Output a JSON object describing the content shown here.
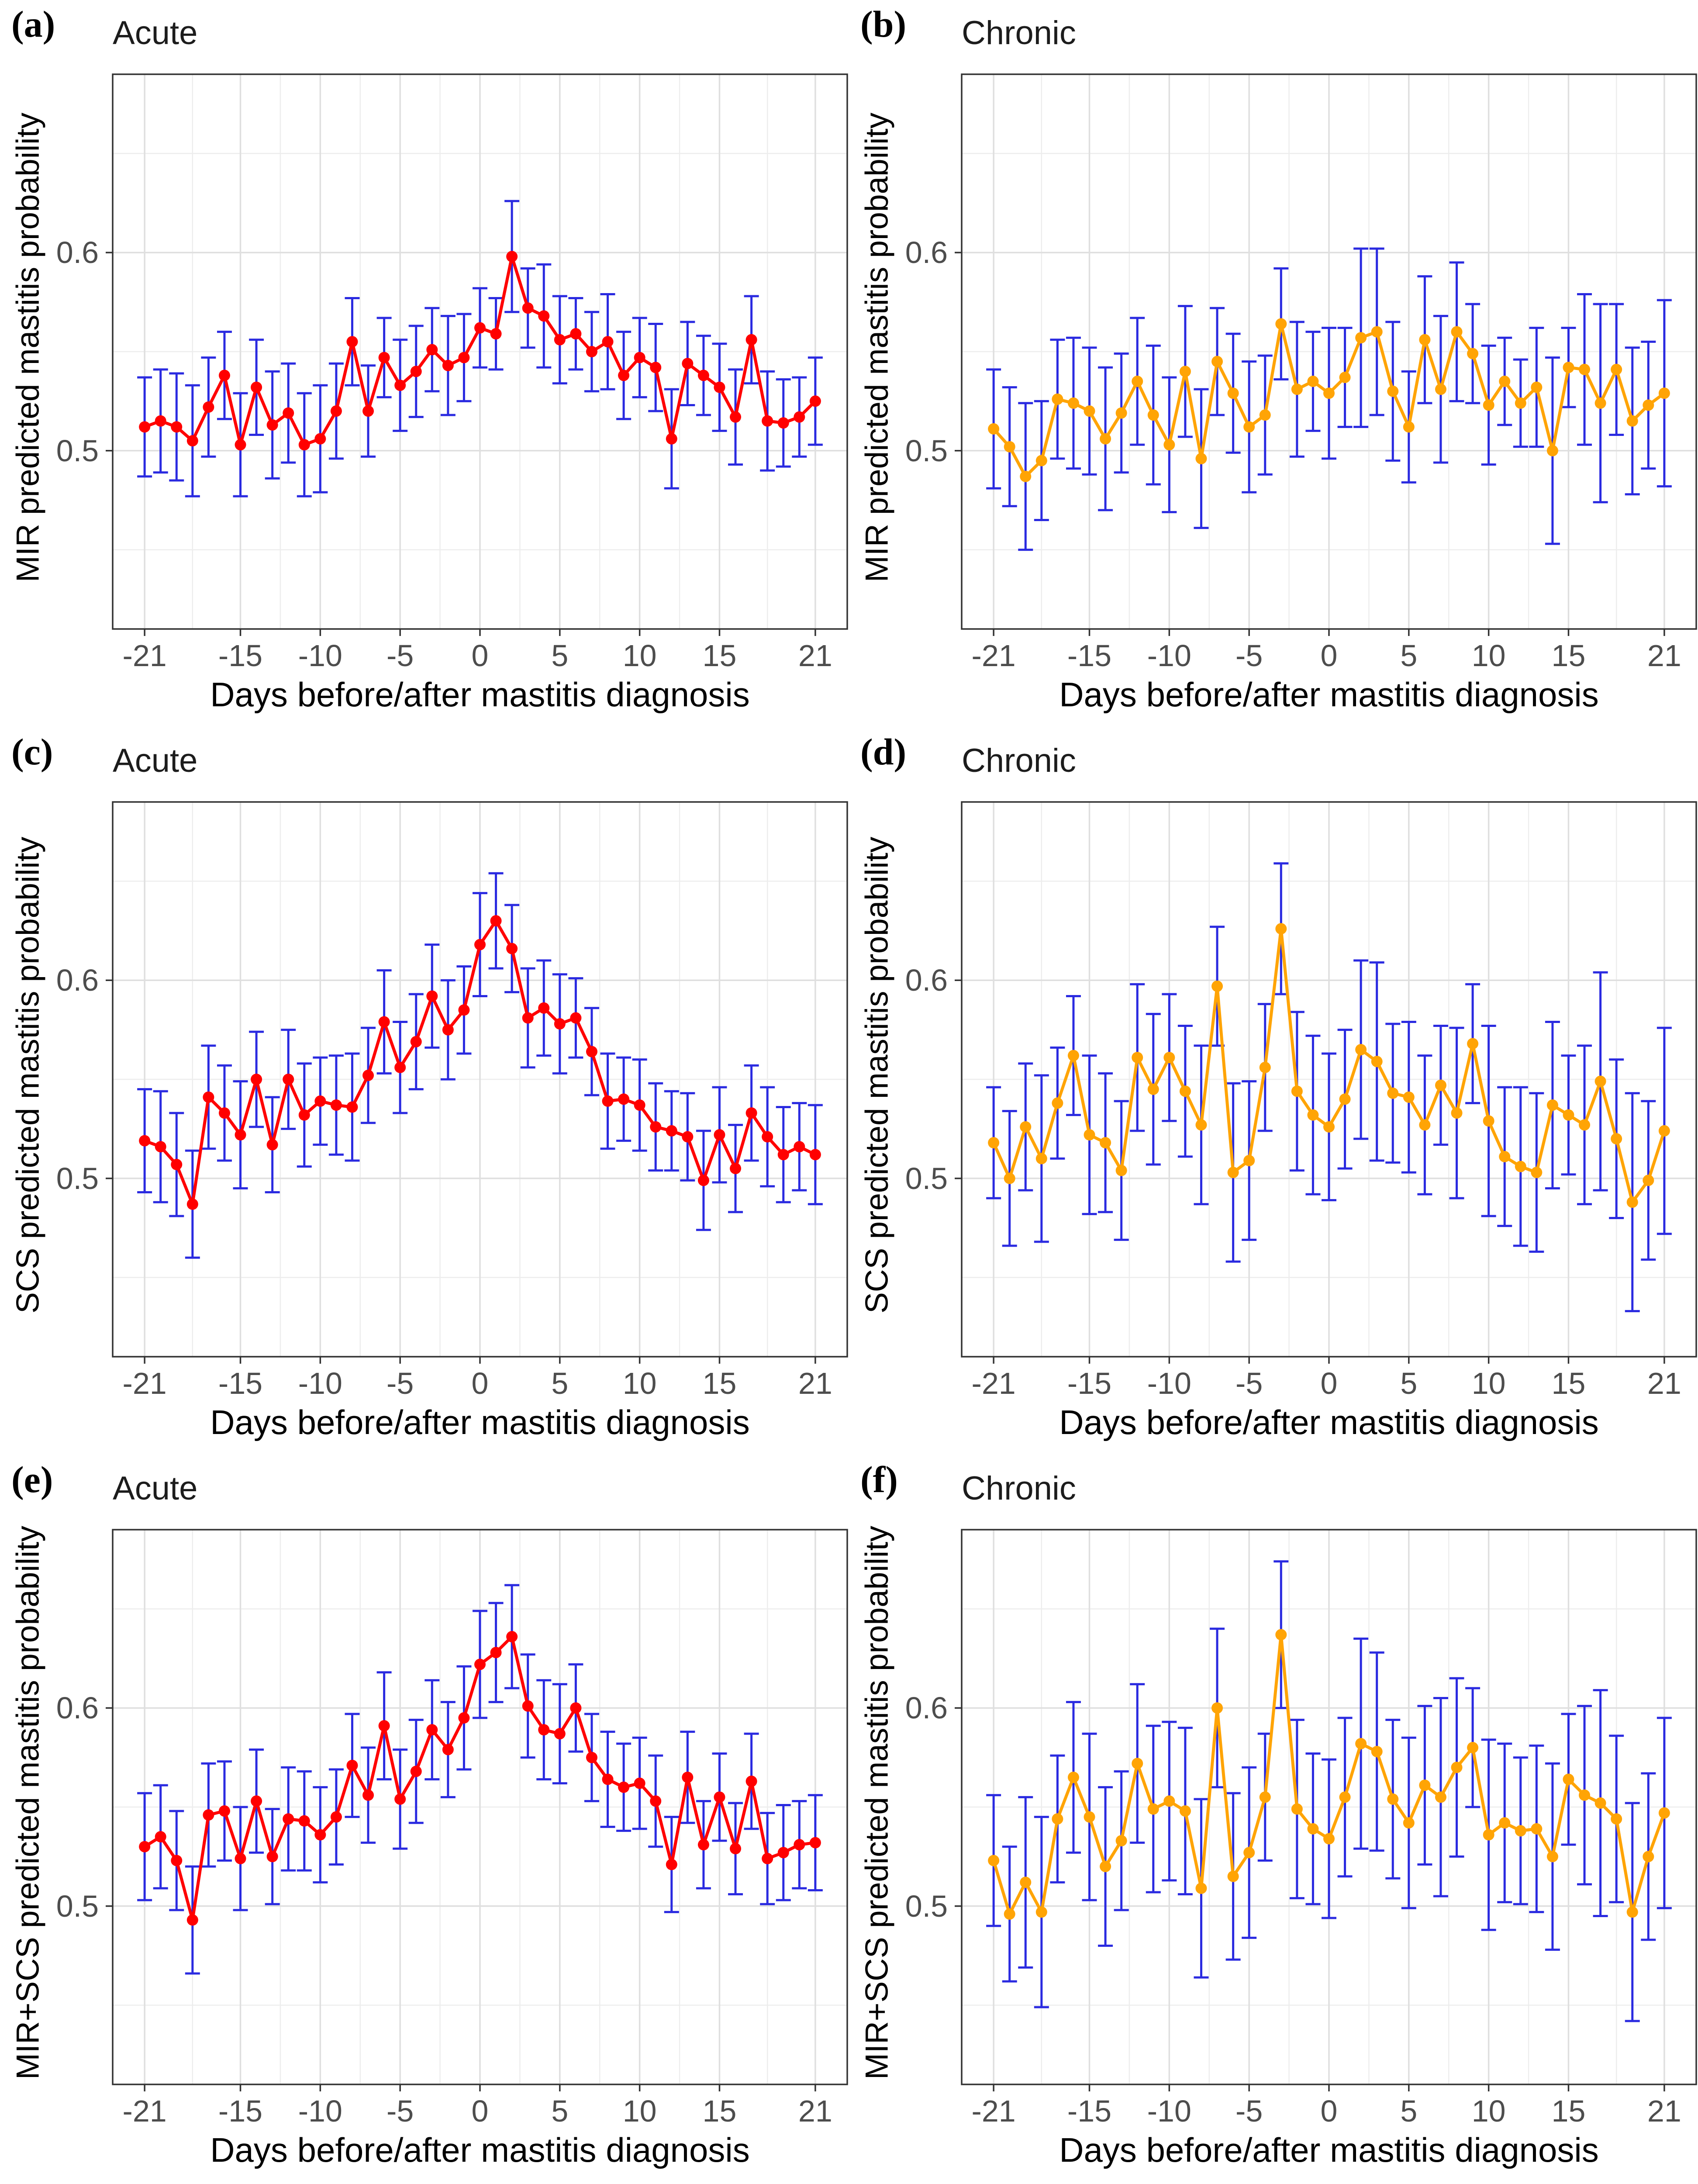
{
  "axes": {
    "xlim": [
      -23,
      23
    ],
    "ylim": [
      0.41,
      0.69
    ],
    "x_ticks": [
      -21,
      -15,
      -10,
      -5,
      0,
      5,
      10,
      15,
      21
    ],
    "x_tick_labels": [
      "-21",
      "-15",
      "-10",
      "-5",
      "0",
      "5",
      "10",
      "15",
      "21"
    ],
    "x_minor_ticks": [
      -18,
      -12.5,
      -7.5,
      -2.5,
      2.5,
      7.5,
      12.5,
      18
    ],
    "y_ticks": [
      0.5,
      0.6
    ],
    "y_tick_labels": [
      "0.5",
      "0.6"
    ],
    "y_minor_ticks": [
      0.45,
      0.55,
      0.65
    ],
    "colors": {
      "acute_line": "#FF0000",
      "chronic_line": "#FFA405",
      "error_bar": "#2A2AE0",
      "grid_major": "#DFDFDF",
      "grid_minor": "#EDEDED",
      "panel_border": "#333333",
      "tick_mark": "#333333",
      "tick_label": "#4D4D4D",
      "axis_title": "#000000",
      "panel_title": "#1C1C1C",
      "plot_background": "#FFFFFF"
    }
  },
  "chart_data": [
    {
      "type": "line",
      "panel_letter": "(a)",
      "title": "Acute",
      "ylabel": "MIR predicted mastitis probability",
      "xlabel": "Days before/after mastitis diagnosis",
      "color_key": "acute_line",
      "x": [
        -21,
        -20,
        -19,
        -18,
        -17,
        -16,
        -15,
        -14,
        -13,
        -12,
        -11,
        -10,
        -9,
        -8,
        -7,
        -6,
        -5,
        -4,
        -3,
        -2,
        -1,
        0,
        1,
        2,
        3,
        4,
        5,
        6,
        7,
        8,
        9,
        10,
        11,
        12,
        13,
        14,
        15,
        16,
        17,
        18,
        19,
        20,
        21
      ],
      "y": [
        0.512,
        0.515,
        0.512,
        0.505,
        0.522,
        0.538,
        0.503,
        0.532,
        0.513,
        0.519,
        0.503,
        0.506,
        0.52,
        0.555,
        0.52,
        0.547,
        0.533,
        0.54,
        0.551,
        0.543,
        0.547,
        0.562,
        0.559,
        0.598,
        0.572,
        0.568,
        0.556,
        0.559,
        0.55,
        0.555,
        0.538,
        0.547,
        0.542,
        0.506,
        0.544,
        0.538,
        0.532,
        0.517,
        0.556,
        0.515,
        0.514,
        0.517,
        0.525
      ],
      "err": [
        0.025,
        0.026,
        0.027,
        0.028,
        0.025,
        0.022,
        0.026,
        0.024,
        0.027,
        0.025,
        0.026,
        0.027,
        0.024,
        0.022,
        0.023,
        0.02,
        0.023,
        0.023,
        0.021,
        0.025,
        0.022,
        0.02,
        0.018,
        0.028,
        0.02,
        0.026,
        0.022,
        0.018,
        0.02,
        0.024,
        0.022,
        0.02,
        0.022,
        0.025,
        0.021,
        0.02,
        0.022,
        0.024,
        0.022,
        0.025,
        0.022,
        0.02,
        0.022
      ]
    },
    {
      "type": "line",
      "panel_letter": "(b)",
      "title": "Chronic",
      "ylabel": "MIR predicted mastitis probability",
      "xlabel": "Days before/after mastitis diagnosis",
      "color_key": "chronic_line",
      "x": [
        -21,
        -20,
        -19,
        -18,
        -17,
        -16,
        -15,
        -14,
        -13,
        -12,
        -11,
        -10,
        -9,
        -8,
        -7,
        -6,
        -5,
        -4,
        -3,
        -2,
        -1,
        0,
        1,
        2,
        3,
        4,
        5,
        6,
        7,
        8,
        9,
        10,
        11,
        12,
        13,
        14,
        15,
        16,
        17,
        18,
        19,
        20,
        21
      ],
      "y": [
        0.511,
        0.502,
        0.487,
        0.495,
        0.526,
        0.524,
        0.52,
        0.506,
        0.519,
        0.535,
        0.518,
        0.503,
        0.54,
        0.496,
        0.545,
        0.529,
        0.512,
        0.518,
        0.564,
        0.531,
        0.535,
        0.529,
        0.537,
        0.557,
        0.56,
        0.53,
        0.512,
        0.556,
        0.531,
        0.56,
        0.549,
        0.523,
        0.535,
        0.524,
        0.532,
        0.5,
        0.542,
        0.541,
        0.524,
        0.541,
        0.515,
        0.523,
        0.529
      ],
      "err": [
        0.03,
        0.03,
        0.037,
        0.03,
        0.03,
        0.033,
        0.032,
        0.036,
        0.03,
        0.032,
        0.035,
        0.034,
        0.033,
        0.035,
        0.027,
        0.03,
        0.033,
        0.03,
        0.028,
        0.034,
        0.025,
        0.033,
        0.025,
        0.045,
        0.042,
        0.035,
        0.028,
        0.032,
        0.037,
        0.035,
        0.025,
        0.03,
        0.022,
        0.022,
        0.03,
        0.047,
        0.02,
        0.038,
        0.05,
        0.033,
        0.037,
        0.032,
        0.047
      ]
    },
    {
      "type": "line",
      "panel_letter": "(c)",
      "title": "Acute",
      "ylabel": "SCS predicted mastitis probability",
      "xlabel": "Days before/after mastitis diagnosis",
      "color_key": "acute_line",
      "x": [
        -21,
        -20,
        -19,
        -18,
        -17,
        -16,
        -15,
        -14,
        -13,
        -12,
        -11,
        -10,
        -9,
        -8,
        -7,
        -6,
        -5,
        -4,
        -3,
        -2,
        -1,
        0,
        1,
        2,
        3,
        4,
        5,
        6,
        7,
        8,
        9,
        10,
        11,
        12,
        13,
        14,
        15,
        16,
        17,
        18,
        19,
        20,
        21
      ],
      "y": [
        0.519,
        0.516,
        0.507,
        0.487,
        0.541,
        0.533,
        0.522,
        0.55,
        0.517,
        0.55,
        0.532,
        0.539,
        0.537,
        0.536,
        0.552,
        0.579,
        0.556,
        0.569,
        0.592,
        0.575,
        0.585,
        0.618,
        0.63,
        0.616,
        0.581,
        0.586,
        0.578,
        0.581,
        0.564,
        0.539,
        0.54,
        0.537,
        0.526,
        0.524,
        0.521,
        0.499,
        0.522,
        0.505,
        0.533,
        0.521,
        0.512,
        0.516,
        0.512
      ],
      "err": [
        0.026,
        0.028,
        0.026,
        0.027,
        0.026,
        0.024,
        0.027,
        0.024,
        0.024,
        0.025,
        0.026,
        0.022,
        0.025,
        0.027,
        0.024,
        0.026,
        0.023,
        0.024,
        0.026,
        0.025,
        0.022,
        0.026,
        0.024,
        0.022,
        0.025,
        0.024,
        0.025,
        0.02,
        0.022,
        0.024,
        0.021,
        0.023,
        0.022,
        0.02,
        0.022,
        0.025,
        0.024,
        0.022,
        0.024,
        0.025,
        0.024,
        0.022,
        0.025
      ]
    },
    {
      "type": "line",
      "panel_letter": "(d)",
      "title": "Chronic",
      "ylabel": "SCS predicted mastitis probability",
      "xlabel": "Days before/after mastitis diagnosis",
      "color_key": "chronic_line",
      "x": [
        -21,
        -20,
        -19,
        -18,
        -17,
        -16,
        -15,
        -14,
        -13,
        -12,
        -11,
        -10,
        -9,
        -8,
        -7,
        -6,
        -5,
        -4,
        -3,
        -2,
        -1,
        0,
        1,
        2,
        3,
        4,
        5,
        6,
        7,
        8,
        9,
        10,
        11,
        12,
        13,
        14,
        15,
        16,
        17,
        18,
        19,
        20,
        21
      ],
      "y": [
        0.518,
        0.5,
        0.526,
        0.51,
        0.538,
        0.562,
        0.522,
        0.518,
        0.504,
        0.561,
        0.545,
        0.561,
        0.544,
        0.527,
        0.597,
        0.503,
        0.509,
        0.556,
        0.626,
        0.544,
        0.532,
        0.526,
        0.54,
        0.565,
        0.559,
        0.543,
        0.541,
        0.527,
        0.547,
        0.533,
        0.568,
        0.529,
        0.511,
        0.506,
        0.503,
        0.537,
        0.532,
        0.527,
        0.549,
        0.52,
        0.488,
        0.499,
        0.524
      ],
      "err": [
        0.028,
        0.034,
        0.032,
        0.042,
        0.028,
        0.03,
        0.04,
        0.035,
        0.035,
        0.037,
        0.038,
        0.032,
        0.033,
        0.04,
        0.03,
        0.045,
        0.04,
        0.032,
        0.033,
        0.04,
        0.04,
        0.037,
        0.035,
        0.045,
        0.05,
        0.035,
        0.038,
        0.035,
        0.03,
        0.043,
        0.03,
        0.048,
        0.035,
        0.04,
        0.04,
        0.042,
        0.03,
        0.04,
        0.055,
        0.04,
        0.055,
        0.04,
        0.052
      ]
    },
    {
      "type": "line",
      "panel_letter": "(e)",
      "title": "Acute",
      "ylabel": "MIR+SCS predicted mastitis probability",
      "xlabel": "Days before/after mastitis diagnosis",
      "color_key": "acute_line",
      "x": [
        -21,
        -20,
        -19,
        -18,
        -17,
        -16,
        -15,
        -14,
        -13,
        -12,
        -11,
        -10,
        -9,
        -8,
        -7,
        -6,
        -5,
        -4,
        -3,
        -2,
        -1,
        0,
        1,
        2,
        3,
        4,
        5,
        6,
        7,
        8,
        9,
        10,
        11,
        12,
        13,
        14,
        15,
        16,
        17,
        18,
        19,
        20,
        21
      ],
      "y": [
        0.53,
        0.535,
        0.523,
        0.493,
        0.546,
        0.548,
        0.524,
        0.553,
        0.525,
        0.544,
        0.543,
        0.536,
        0.545,
        0.571,
        0.556,
        0.591,
        0.554,
        0.568,
        0.589,
        0.579,
        0.595,
        0.622,
        0.628,
        0.636,
        0.601,
        0.589,
        0.587,
        0.6,
        0.575,
        0.564,
        0.56,
        0.562,
        0.553,
        0.521,
        0.565,
        0.531,
        0.555,
        0.529,
        0.563,
        0.524,
        0.527,
        0.531,
        0.532
      ],
      "err": [
        0.027,
        0.026,
        0.025,
        0.027,
        0.026,
        0.025,
        0.026,
        0.026,
        0.024,
        0.026,
        0.025,
        0.024,
        0.024,
        0.026,
        0.024,
        0.027,
        0.025,
        0.026,
        0.025,
        0.024,
        0.026,
        0.027,
        0.025,
        0.026,
        0.026,
        0.025,
        0.025,
        0.022,
        0.022,
        0.024,
        0.022,
        0.023,
        0.023,
        0.024,
        0.023,
        0.022,
        0.022,
        0.023,
        0.024,
        0.023,
        0.024,
        0.022,
        0.024
      ]
    },
    {
      "type": "line",
      "panel_letter": "(f)",
      "title": "Chronic",
      "ylabel": "MIR+SCS predicted mastitis probability",
      "xlabel": "Days before/after mastitis diagnosis",
      "color_key": "chronic_line",
      "x": [
        -21,
        -20,
        -19,
        -18,
        -17,
        -16,
        -15,
        -14,
        -13,
        -12,
        -11,
        -10,
        -9,
        -8,
        -7,
        -6,
        -5,
        -4,
        -3,
        -2,
        -1,
        0,
        1,
        2,
        3,
        4,
        5,
        6,
        7,
        8,
        9,
        10,
        11,
        12,
        13,
        14,
        15,
        16,
        17,
        18,
        19,
        20,
        21
      ],
      "y": [
        0.523,
        0.496,
        0.512,
        0.497,
        0.544,
        0.565,
        0.545,
        0.52,
        0.533,
        0.572,
        0.549,
        0.553,
        0.548,
        0.509,
        0.6,
        0.515,
        0.527,
        0.555,
        0.637,
        0.549,
        0.539,
        0.534,
        0.555,
        0.582,
        0.578,
        0.554,
        0.542,
        0.561,
        0.555,
        0.57,
        0.58,
        0.536,
        0.542,
        0.538,
        0.539,
        0.525,
        0.564,
        0.556,
        0.552,
        0.544,
        0.497,
        0.525,
        0.547
      ],
      "err": [
        0.033,
        0.034,
        0.043,
        0.048,
        0.032,
        0.038,
        0.042,
        0.04,
        0.035,
        0.04,
        0.042,
        0.04,
        0.042,
        0.045,
        0.04,
        0.042,
        0.043,
        0.032,
        0.037,
        0.045,
        0.038,
        0.04,
        0.04,
        0.053,
        0.05,
        0.04,
        0.043,
        0.04,
        0.05,
        0.045,
        0.03,
        0.048,
        0.04,
        0.037,
        0.042,
        0.047,
        0.033,
        0.045,
        0.057,
        0.042,
        0.055,
        0.042,
        0.048
      ]
    }
  ]
}
